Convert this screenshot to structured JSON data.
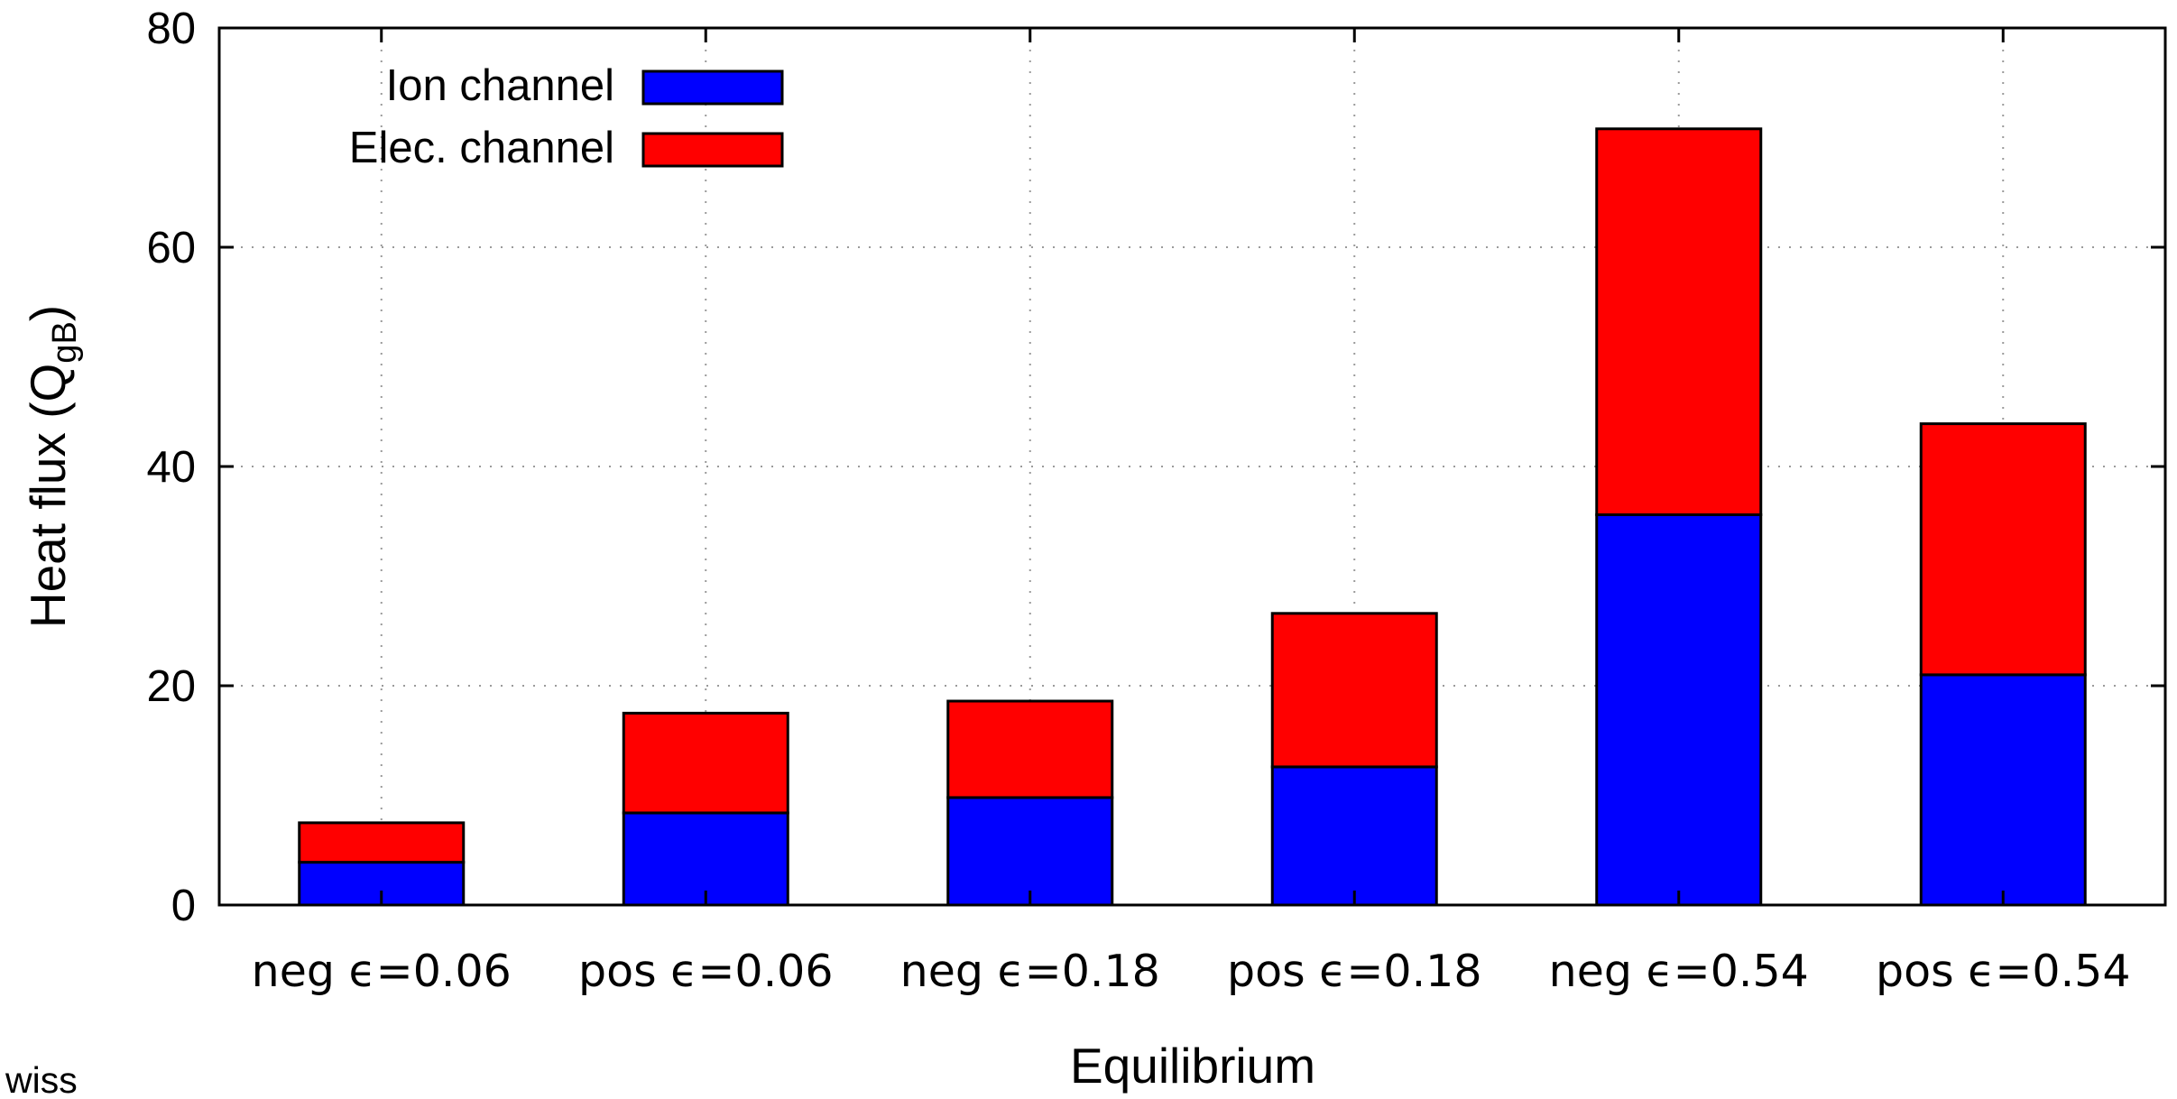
{
  "chart_data": {
    "type": "bar",
    "stacked": true,
    "categories": [
      "neg ϵ=0.06",
      "pos ϵ=0.06",
      "neg ϵ=0.18",
      "pos ϵ=0.18",
      "neg ϵ=0.54",
      "pos ϵ=0.54"
    ],
    "series": [
      {
        "name": "Ion channel",
        "color": "#0000ff",
        "values": [
          3.9,
          8.4,
          9.8,
          12.6,
          35.6,
          21.0
        ]
      },
      {
        "name": "Elec. channel",
        "color": "#ff0000",
        "values": [
          3.6,
          9.1,
          8.8,
          14.0,
          35.2,
          22.9
        ]
      }
    ],
    "xlabel": "Equilibrium",
    "ylabel_main": "Heat flux (Q",
    "ylabel_sub": "gB",
    "ylabel_close": ")",
    "ylim": [
      0,
      80
    ],
    "yticks": [
      0,
      20,
      40,
      60,
      80
    ],
    "grid": true,
    "legend_position": "top-left"
  },
  "stray_text": "wiss"
}
